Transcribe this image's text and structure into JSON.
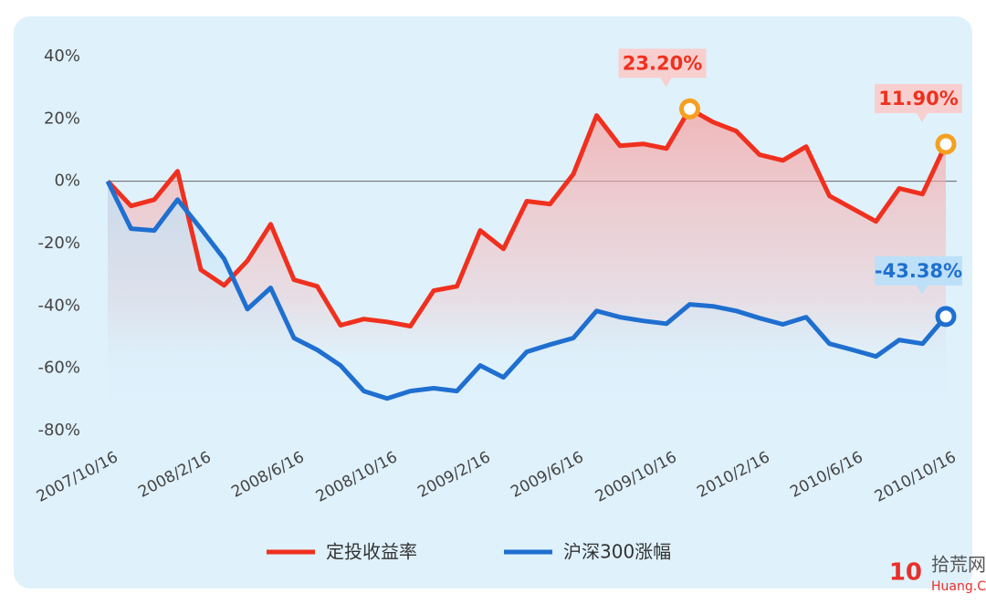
{
  "chart_data": {
    "type": "line",
    "categories": [
      "2007/10/16",
      null,
      null,
      null,
      "2008/2/16",
      null,
      null,
      null,
      "2008/6/16",
      null,
      null,
      null,
      "2008/10/16",
      null,
      null,
      null,
      "2009/2/16",
      null,
      null,
      null,
      "2009/6/16",
      null,
      null,
      null,
      "2009/10/16",
      null,
      null,
      null,
      "2010/2/16",
      null,
      null,
      null,
      "2010/6/16",
      null,
      null,
      null,
      "2010/10/16"
    ],
    "series": [
      {
        "name": "定投收益率",
        "color": "#f0301e",
        "values": [
          0,
          -7.9,
          -5.9,
          3.2,
          -28.4,
          -33.4,
          -25.5,
          -13.8,
          -31.6,
          -33.7,
          -46.2,
          -44.2,
          -45.1,
          -46.5,
          -35.1,
          -33.7,
          -15.8,
          -21.7,
          -6.4,
          -7.3,
          2.3,
          21.1,
          11.4,
          12,
          10.5,
          23.2,
          19,
          16.1,
          8.5,
          6.7,
          11.1,
          -4.7,
          -8.8,
          -12.9,
          -2.3,
          -4.1,
          11.9
        ],
        "value_labels": [
          null,
          null,
          null,
          null,
          null,
          null,
          null,
          null,
          null,
          null,
          null,
          null,
          null,
          null,
          null,
          null,
          null,
          null,
          null,
          null,
          null,
          null,
          null,
          null,
          null,
          "23.20%",
          null,
          null,
          null,
          null,
          null,
          null,
          null,
          null,
          null,
          null,
          "11.90%"
        ]
      },
      {
        "name": "沪深300涨幅",
        "color": "#1f6fd0",
        "values": [
          0,
          -15.2,
          -15.8,
          -5.9,
          -15.2,
          -24.9,
          -41,
          -34.2,
          -50.3,
          -54.1,
          -59.1,
          -67.3,
          -69.7,
          -67.3,
          -66.4,
          -67.3,
          -59.1,
          -62.9,
          -54.7,
          -52.4,
          -50.3,
          -41.6,
          -43.6,
          -44.8,
          -45.7,
          -39.5,
          -40.1,
          -41.6,
          -43.9,
          -45.9,
          -43.6,
          -52.1,
          -54.1,
          -56.2,
          -50.9,
          -52.1,
          -43.38
        ],
        "value_labels": [
          null,
          null,
          null,
          null,
          null,
          null,
          null,
          null,
          null,
          null,
          null,
          null,
          null,
          null,
          null,
          null,
          null,
          null,
          null,
          null,
          null,
          null,
          null,
          null,
          null,
          null,
          null,
          null,
          null,
          null,
          null,
          null,
          null,
          null,
          null,
          null,
          "-43.38%"
        ]
      }
    ],
    "ylim": [
      -80,
      40
    ],
    "yticks": [
      {
        "value": -80,
        "label": "-80%"
      },
      {
        "value": -60,
        "label": "-60%"
      },
      {
        "value": -40,
        "label": "-40%"
      },
      {
        "value": -20,
        "label": "-20%"
      },
      {
        "value": 0,
        "label": "0%"
      },
      {
        "value": 20,
        "label": "20%"
      },
      {
        "value": 40,
        "label": "40%"
      }
    ],
    "grid": false,
    "legend": "bottom"
  },
  "watermark": {
    "logo": "10",
    "name": "拾荒网",
    "url": "Huang.CN"
  }
}
